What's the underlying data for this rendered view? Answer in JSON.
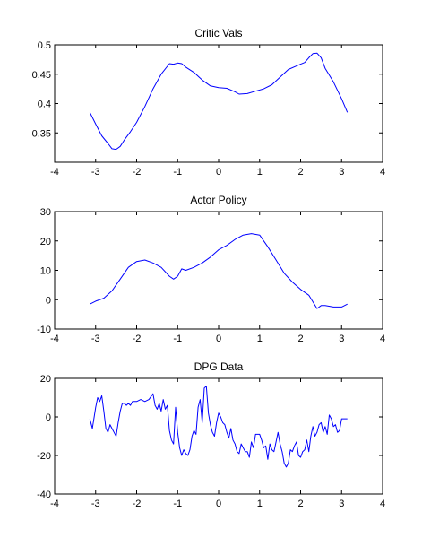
{
  "chart_data": [
    {
      "type": "line",
      "title": "Critic Vals",
      "xlabel": "",
      "ylabel": "",
      "xlim": [
        -4,
        4
      ],
      "ylim": [
        0.3,
        0.5
      ],
      "xticks": [
        -4,
        -3,
        -2,
        -1,
        0,
        1,
        2,
        3,
        4
      ],
      "yticks": [
        0.35,
        0.4,
        0.45,
        0.5
      ],
      "xtick_labels": [
        "-4",
        "-3",
        "-2",
        "-1",
        "0",
        "1",
        "2",
        "3",
        "4"
      ],
      "ytick_labels": [
        "0.35",
        "0.4",
        "0.45",
        "0.5"
      ],
      "grid": false,
      "color": "#0000ff",
      "series": [
        {
          "x": [
            -3.14,
            -3.0,
            -2.85,
            -2.7,
            -2.6,
            -2.5,
            -2.4,
            -2.3,
            -2.15,
            -2.0,
            -1.8,
            -1.6,
            -1.4,
            -1.2,
            -1.1,
            -1.0,
            -0.9,
            -0.8,
            -0.6,
            -0.4,
            -0.2,
            0.0,
            0.2,
            0.4,
            0.5,
            0.7,
            0.9,
            1.1,
            1.3,
            1.5,
            1.7,
            1.9,
            2.0,
            2.1,
            2.2,
            2.3,
            2.4,
            2.5,
            2.6,
            2.8,
            3.0,
            3.14
          ],
          "y": [
            0.385,
            0.365,
            0.345,
            0.332,
            0.323,
            0.322,
            0.327,
            0.338,
            0.352,
            0.368,
            0.395,
            0.425,
            0.45,
            0.468,
            0.467,
            0.469,
            0.468,
            0.462,
            0.453,
            0.44,
            0.43,
            0.427,
            0.426,
            0.42,
            0.416,
            0.417,
            0.421,
            0.425,
            0.432,
            0.445,
            0.458,
            0.464,
            0.467,
            0.47,
            0.478,
            0.485,
            0.486,
            0.478,
            0.46,
            0.437,
            0.408,
            0.385
          ]
        }
      ]
    },
    {
      "type": "line",
      "title": "Actor Policy",
      "xlabel": "",
      "ylabel": "",
      "xlim": [
        -4,
        4
      ],
      "ylim": [
        -10,
        30
      ],
      "xticks": [
        -4,
        -3,
        -2,
        -1,
        0,
        1,
        2,
        3,
        4
      ],
      "yticks": [
        -10,
        0,
        10,
        20,
        30
      ],
      "xtick_labels": [
        "-4",
        "-3",
        "-2",
        "-1",
        "0",
        "1",
        "2",
        "3",
        "4"
      ],
      "ytick_labels": [
        "-10",
        "0",
        "10",
        "20",
        "30"
      ],
      "grid": false,
      "color": "#0000ff",
      "series": [
        {
          "x": [
            -3.14,
            -3.0,
            -2.8,
            -2.6,
            -2.4,
            -2.2,
            -2.0,
            -1.8,
            -1.6,
            -1.4,
            -1.2,
            -1.1,
            -1.0,
            -0.9,
            -0.8,
            -0.6,
            -0.4,
            -0.2,
            0.0,
            0.2,
            0.4,
            0.6,
            0.8,
            1.0,
            1.2,
            1.4,
            1.6,
            1.8,
            2.0,
            2.2,
            2.4,
            2.5,
            2.6,
            2.8,
            3.0,
            3.14
          ],
          "y": [
            -1.5,
            -0.5,
            0.5,
            3.0,
            7.0,
            11.0,
            13.0,
            13.5,
            12.5,
            11.0,
            8.0,
            7.0,
            8.0,
            10.5,
            10.0,
            11.0,
            12.5,
            14.5,
            17.0,
            18.5,
            20.5,
            22.0,
            22.5,
            22.0,
            18.0,
            13.5,
            9.0,
            6.0,
            3.5,
            1.5,
            -3.0,
            -2.0,
            -2.0,
            -2.5,
            -2.5,
            -1.5
          ]
        }
      ]
    },
    {
      "type": "line",
      "title": "DPG Data",
      "xlabel": "",
      "ylabel": "",
      "xlim": [
        -4,
        4
      ],
      "ylim": [
        -40,
        20
      ],
      "xticks": [
        -4,
        -3,
        -2,
        -1,
        0,
        1,
        2,
        3,
        4
      ],
      "yticks": [
        -40,
        -20,
        0,
        20
      ],
      "xtick_labels": [
        "-4",
        "-3",
        "-2",
        "-1",
        "0",
        "1",
        "2",
        "3",
        "4"
      ],
      "ytick_labels": [
        "-40",
        "-20",
        "0",
        "20"
      ],
      "grid": false,
      "color": "#0000ff",
      "series": [
        {
          "x": [
            -3.14,
            -3.08,
            -3.0,
            -2.95,
            -2.9,
            -2.85,
            -2.8,
            -2.75,
            -2.7,
            -2.65,
            -2.6,
            -2.55,
            -2.5,
            -2.45,
            -2.4,
            -2.35,
            -2.3,
            -2.25,
            -2.2,
            -2.15,
            -2.1,
            -2.0,
            -1.9,
            -1.8,
            -1.7,
            -1.6,
            -1.55,
            -1.5,
            -1.45,
            -1.4,
            -1.35,
            -1.3,
            -1.25,
            -1.2,
            -1.15,
            -1.1,
            -1.05,
            -1.0,
            -0.95,
            -0.9,
            -0.85,
            -0.8,
            -0.75,
            -0.7,
            -0.65,
            -0.6,
            -0.55,
            -0.5,
            -0.45,
            -0.4,
            -0.35,
            -0.3,
            -0.25,
            -0.2,
            -0.15,
            -0.1,
            -0.05,
            0.0,
            0.05,
            0.1,
            0.15,
            0.2,
            0.25,
            0.3,
            0.35,
            0.4,
            0.45,
            0.5,
            0.55,
            0.6,
            0.65,
            0.7,
            0.75,
            0.8,
            0.85,
            0.9,
            0.95,
            1.0,
            1.05,
            1.1,
            1.15,
            1.2,
            1.25,
            1.3,
            1.35,
            1.4,
            1.45,
            1.5,
            1.55,
            1.6,
            1.65,
            1.7,
            1.75,
            1.8,
            1.85,
            1.9,
            1.95,
            2.0,
            2.05,
            2.1,
            2.15,
            2.2,
            2.25,
            2.3,
            2.35,
            2.4,
            2.45,
            2.5,
            2.55,
            2.6,
            2.65,
            2.7,
            2.75,
            2.8,
            2.85,
            2.9,
            2.95,
            3.0,
            3.05,
            3.1,
            3.14
          ],
          "y": [
            -1,
            -6,
            5,
            10,
            8,
            11,
            3,
            -6,
            -8,
            -4,
            -6,
            -8,
            -10,
            -3,
            3,
            7,
            7,
            6,
            7,
            6,
            8,
            8,
            9,
            8,
            9,
            12,
            6,
            4,
            7,
            3,
            9,
            4,
            6,
            -7,
            -12,
            -14,
            5,
            -8,
            -16,
            -20,
            -17,
            -19,
            -20,
            -17,
            -10,
            -7,
            -9,
            5,
            9,
            -3,
            15,
            16,
            2,
            -4,
            -8,
            -10,
            -3,
            2,
            0,
            -3,
            -4,
            -8,
            -11,
            -6,
            -12,
            -14,
            -18,
            -19,
            -14,
            -16,
            -18,
            -18,
            -21,
            -13,
            -16,
            -9,
            -9,
            -9,
            -12,
            -16,
            -15,
            -22,
            -14,
            -17,
            -18,
            -13,
            -8,
            -14,
            -18,
            -24,
            -26,
            -24,
            -17,
            -18,
            -15,
            -13,
            -20,
            -21,
            -18,
            -17,
            -12,
            -18,
            -10,
            -5,
            -10,
            -8,
            -4,
            -3,
            -8,
            -5,
            -9,
            1,
            -1,
            -5,
            -4,
            -8,
            -7,
            -1,
            -1,
            -1,
            -1
          ]
        }
      ]
    }
  ]
}
